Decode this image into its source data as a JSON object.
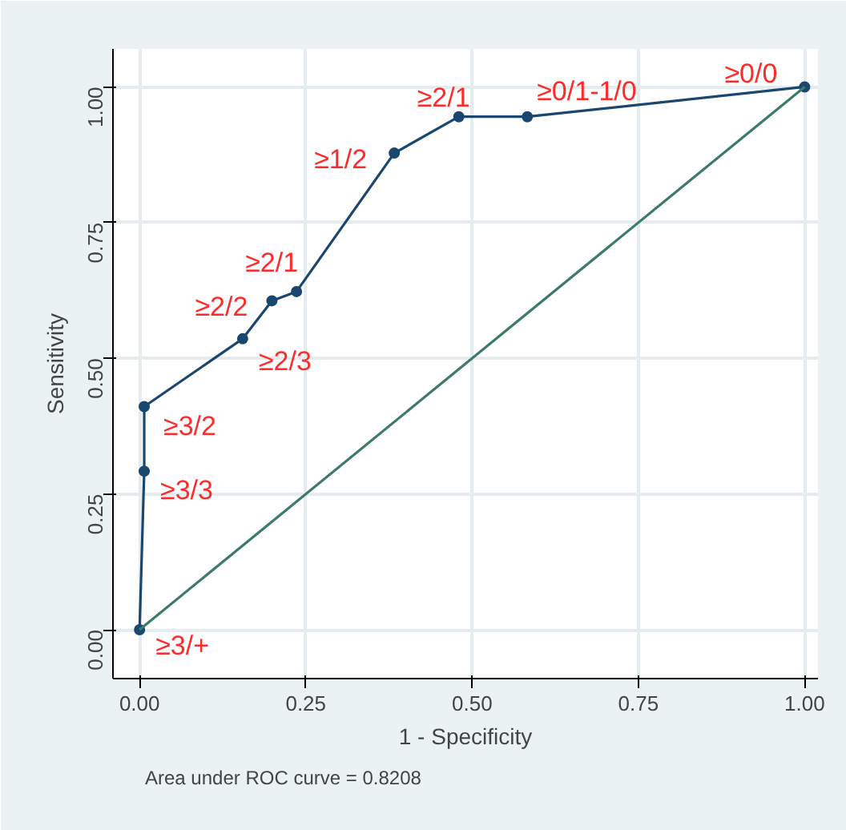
{
  "chart_data": {
    "type": "line",
    "xlabel": "1 - Specificity",
    "ylabel": "Sensitivity",
    "x": [
      0,
      0.007,
      0.007,
      0.155,
      0.199,
      0.236,
      0.383,
      0.48,
      0.583,
      1
    ],
    "series": [
      {
        "color": "#1a476f",
        "values": [
          0,
          0.292,
          0.411,
          0.536,
          0.606,
          0.623,
          0.878,
          0.945,
          0.945,
          1
        ],
        "marker": "circle"
      },
      {
        "color": "#3d7a6c",
        "x": [
          0,
          1
        ],
        "values": [
          0,
          1
        ],
        "marker": "none"
      }
    ],
    "xlim": [
      -0.04,
      1.02
    ],
    "ylim": [
      -0.09,
      1.07
    ],
    "xticks": [
      {
        "value": 0,
        "label": "0.00"
      },
      0.25,
      {
        "value": 0.5,
        "label": "0.50"
      },
      0.75,
      {
        "value": 1,
        "label": "1.00"
      }
    ],
    "yticks": [
      {
        "value": 0,
        "label": "0.00"
      },
      0.25,
      {
        "value": 0.5,
        "label": "0.50"
      },
      0.75,
      {
        "value": 1,
        "label": "1.00"
      }
    ],
    "grid": true,
    "annotations": [
      {
        "text": "≥3/+",
        "x": 0,
        "y": 0
      },
      {
        "text": "≥3/3",
        "x": 0.007,
        "y": 0.292
      },
      {
        "text": "≥3/2",
        "x": 0.007,
        "y": 0.411
      },
      {
        "text": "≥2/3",
        "x": 0.155,
        "y": 0.536
      },
      {
        "text": "≥2/2",
        "x": 0.199,
        "y": 0.606
      },
      {
        "text": "≥2/1",
        "x": 0.236,
        "y": 0.623
      },
      {
        "text": "≥1/2",
        "x": 0.383,
        "y": 0.878
      },
      {
        "text": "≥2/1",
        "x": 0.48,
        "y": 0.945
      },
      {
        "text": "≥0/1-1/0",
        "x": 0.583,
        "y": 0.945
      },
      {
        "text": "≥0/0",
        "x": 1,
        "y": 1
      },
      "Area under ROC curve = 0.8208"
    ]
  }
}
